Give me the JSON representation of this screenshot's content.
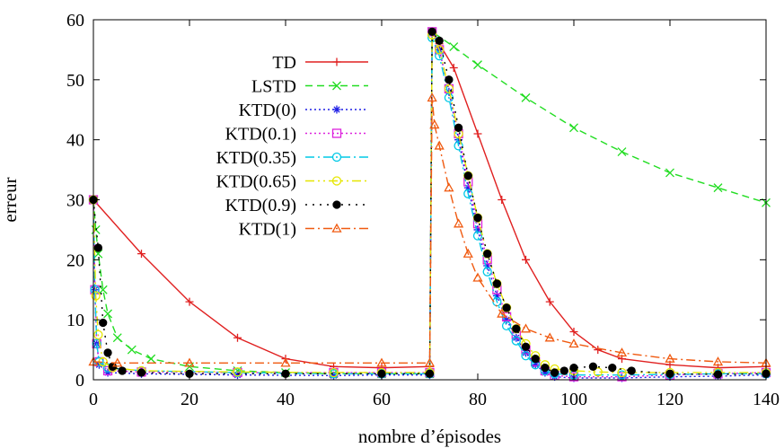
{
  "chart_data": {
    "type": "line",
    "title": "",
    "xlabel": "nombre d’épisodes",
    "ylabel": "erreur",
    "xlim": [
      0,
      140
    ],
    "ylim": [
      0,
      60
    ],
    "xticks": [
      0,
      20,
      40,
      60,
      80,
      100,
      120,
      140
    ],
    "yticks": [
      0,
      10,
      20,
      30,
      40,
      50,
      60
    ],
    "grid": false,
    "legend_position": "top-left",
    "series": [
      {
        "name": "TD",
        "color": "#e02020",
        "marker": "plus",
        "dash": "",
        "points": [
          [
            0,
            30
          ],
          [
            10,
            21
          ],
          [
            20,
            13
          ],
          [
            30,
            7
          ],
          [
            40,
            3.5
          ],
          [
            50,
            2.2
          ],
          [
            60,
            2.0
          ],
          [
            70,
            2.2
          ],
          [
            70.5,
            58
          ],
          [
            72,
            56
          ],
          [
            75,
            52
          ],
          [
            80,
            41
          ],
          [
            85,
            30
          ],
          [
            90,
            20
          ],
          [
            95,
            13
          ],
          [
            100,
            8
          ],
          [
            105,
            5
          ],
          [
            110,
            3.5
          ],
          [
            120,
            2.5
          ],
          [
            130,
            2.0
          ],
          [
            140,
            2.2
          ]
        ]
      },
      {
        "name": "LSTD",
        "color": "#22dd22",
        "marker": "x",
        "dash": "8,5",
        "points": [
          [
            0,
            30
          ],
          [
            0.5,
            25
          ],
          [
            1,
            21
          ],
          [
            2,
            15
          ],
          [
            3,
            11
          ],
          [
            5,
            7
          ],
          [
            8,
            5
          ],
          [
            12,
            3.5
          ],
          [
            20,
            2.2
          ],
          [
            30,
            1.5
          ],
          [
            40,
            1.2
          ],
          [
            50,
            1.0
          ],
          [
            60,
            1.0
          ],
          [
            70,
            1.0
          ],
          [
            70.5,
            58
          ],
          [
            75,
            55.5
          ],
          [
            80,
            52.5
          ],
          [
            90,
            47
          ],
          [
            100,
            42
          ],
          [
            110,
            38
          ],
          [
            120,
            34.5
          ],
          [
            130,
            32
          ],
          [
            140,
            29.5
          ]
        ]
      },
      {
        "name": "KTD(0)",
        "color": "#1f1fe6",
        "marker": "star",
        "dash": "2,3",
        "points": [
          [
            0,
            30
          ],
          [
            0.3,
            15
          ],
          [
            0.7,
            6
          ],
          [
            1.2,
            2.5
          ],
          [
            3,
            1.2
          ],
          [
            10,
            1.0
          ],
          [
            30,
            0.8
          ],
          [
            50,
            0.7
          ],
          [
            60,
            0.8
          ],
          [
            70,
            0.8
          ],
          [
            70.5,
            58
          ],
          [
            72,
            55
          ],
          [
            74,
            48
          ],
          [
            76,
            40
          ],
          [
            78,
            32
          ],
          [
            80,
            25
          ],
          [
            82,
            19
          ],
          [
            84,
            14
          ],
          [
            86,
            10
          ],
          [
            88,
            7
          ],
          [
            90,
            4.5
          ],
          [
            92,
            2.5
          ],
          [
            94,
            1.2
          ],
          [
            96,
            0.5
          ],
          [
            100,
            0.3
          ],
          [
            110,
            0.3
          ],
          [
            120,
            0.5
          ],
          [
            130,
            0.6
          ],
          [
            140,
            0.8
          ]
        ]
      },
      {
        "name": "KTD(0.1)",
        "color": "#dd22dd",
        "marker": "square",
        "dash": "2,3",
        "points": [
          [
            0,
            30
          ],
          [
            0.3,
            15
          ],
          [
            0.7,
            6
          ],
          [
            1.2,
            3
          ],
          [
            3,
            1.5
          ],
          [
            10,
            1.3
          ],
          [
            30,
            1.2
          ],
          [
            50,
            1.2
          ],
          [
            60,
            1.2
          ],
          [
            70,
            1.2
          ],
          [
            70.5,
            58
          ],
          [
            72,
            55
          ],
          [
            74,
            48.5
          ],
          [
            76,
            41
          ],
          [
            78,
            33
          ],
          [
            80,
            26
          ],
          [
            82,
            20
          ],
          [
            84,
            15
          ],
          [
            86,
            10.5
          ],
          [
            88,
            7.5
          ],
          [
            90,
            5
          ],
          [
            92,
            3
          ],
          [
            94,
            1.5
          ],
          [
            96,
            0.7
          ],
          [
            100,
            0.5
          ],
          [
            110,
            0.5
          ],
          [
            120,
            0.8
          ],
          [
            130,
            1.0
          ],
          [
            140,
            1.2
          ]
        ]
      },
      {
        "name": "KTD(0.35)",
        "color": "#00c8e6",
        "marker": "circle-open",
        "dash": "10,4,2,4",
        "points": [
          [
            0,
            30
          ],
          [
            0.3,
            15
          ],
          [
            0.7,
            6
          ],
          [
            1.2,
            3
          ],
          [
            3,
            2
          ],
          [
            10,
            1.5
          ],
          [
            30,
            1.2
          ],
          [
            50,
            1.0
          ],
          [
            60,
            1.0
          ],
          [
            70,
            1.0
          ],
          [
            70.5,
            57
          ],
          [
            72,
            54
          ],
          [
            74,
            47
          ],
          [
            76,
            39
          ],
          [
            78,
            31
          ],
          [
            80,
            24
          ],
          [
            82,
            18
          ],
          [
            84,
            13
          ],
          [
            86,
            9
          ],
          [
            88,
            6.5
          ],
          [
            90,
            4
          ],
          [
            92,
            2.5
          ],
          [
            94,
            1.5
          ],
          [
            96,
            1.0
          ],
          [
            100,
            0.8
          ],
          [
            110,
            0.8
          ],
          [
            120,
            0.9
          ],
          [
            130,
            1.0
          ],
          [
            140,
            1.0
          ]
        ]
      },
      {
        "name": "KTD(0.65)",
        "color": "#e6e600",
        "marker": "circle-open",
        "dash": "10,4,2,4,2,4",
        "points": [
          [
            0,
            30
          ],
          [
            0.5,
            14
          ],
          [
            1,
            7.5
          ],
          [
            2,
            3
          ],
          [
            4,
            2
          ],
          [
            10,
            1.5
          ],
          [
            30,
            1.3
          ],
          [
            50,
            1.2
          ],
          [
            60,
            1.2
          ],
          [
            70,
            1.2
          ],
          [
            70.5,
            57.5
          ],
          [
            72,
            55
          ],
          [
            74,
            48.5
          ],
          [
            76,
            41
          ],
          [
            78,
            34
          ],
          [
            80,
            27
          ],
          [
            82,
            21
          ],
          [
            84,
            16
          ],
          [
            86,
            12
          ],
          [
            88,
            8.5
          ],
          [
            90,
            6
          ],
          [
            92,
            4
          ],
          [
            94,
            2.5
          ],
          [
            96,
            1.8
          ],
          [
            100,
            1.5
          ],
          [
            105,
            1.3
          ],
          [
            110,
            1.2
          ],
          [
            120,
            1.2
          ],
          [
            130,
            1.2
          ],
          [
            140,
            1.2
          ]
        ]
      },
      {
        "name": "KTD(0.9)",
        "color": "#000000",
        "marker": "dot",
        "dash": "2,6",
        "points": [
          [
            0,
            30
          ],
          [
            1,
            22
          ],
          [
            2,
            9.5
          ],
          [
            3,
            4.5
          ],
          [
            4,
            2.2
          ],
          [
            6,
            1.5
          ],
          [
            10,
            1.2
          ],
          [
            20,
            1.0
          ],
          [
            40,
            1.0
          ],
          [
            60,
            1.0
          ],
          [
            70,
            1.0
          ],
          [
            70.5,
            58
          ],
          [
            72,
            56.5
          ],
          [
            74,
            50
          ],
          [
            76,
            42
          ],
          [
            78,
            34
          ],
          [
            80,
            27
          ],
          [
            82,
            21
          ],
          [
            84,
            16
          ],
          [
            86,
            12
          ],
          [
            88,
            8.5
          ],
          [
            90,
            5.5
          ],
          [
            92,
            3.5
          ],
          [
            94,
            2
          ],
          [
            96,
            1.2
          ],
          [
            98,
            1.5
          ],
          [
            100,
            2.0
          ],
          [
            104,
            2.2
          ],
          [
            108,
            2.0
          ],
          [
            112,
            1.5
          ],
          [
            120,
            1.0
          ],
          [
            130,
            0.9
          ],
          [
            140,
            1.0
          ]
        ]
      },
      {
        "name": "KTD(1)",
        "color": "#f05a10",
        "marker": "triangle",
        "dash": "10,4,2,4",
        "points": [
          [
            0,
            3.0
          ],
          [
            5,
            2.8
          ],
          [
            20,
            2.8
          ],
          [
            40,
            2.8
          ],
          [
            60,
            2.8
          ],
          [
            70,
            2.8
          ],
          [
            70.5,
            47
          ],
          [
            71,
            42.5
          ],
          [
            72,
            39
          ],
          [
            74,
            32
          ],
          [
            76,
            26
          ],
          [
            78,
            21
          ],
          [
            80,
            17
          ],
          [
            85,
            11
          ],
          [
            90,
            8.5
          ],
          [
            95,
            7.0
          ],
          [
            100,
            6.0
          ],
          [
            110,
            4.5
          ],
          [
            120,
            3.5
          ],
          [
            130,
            3.0
          ],
          [
            140,
            2.8
          ]
        ]
      }
    ]
  }
}
